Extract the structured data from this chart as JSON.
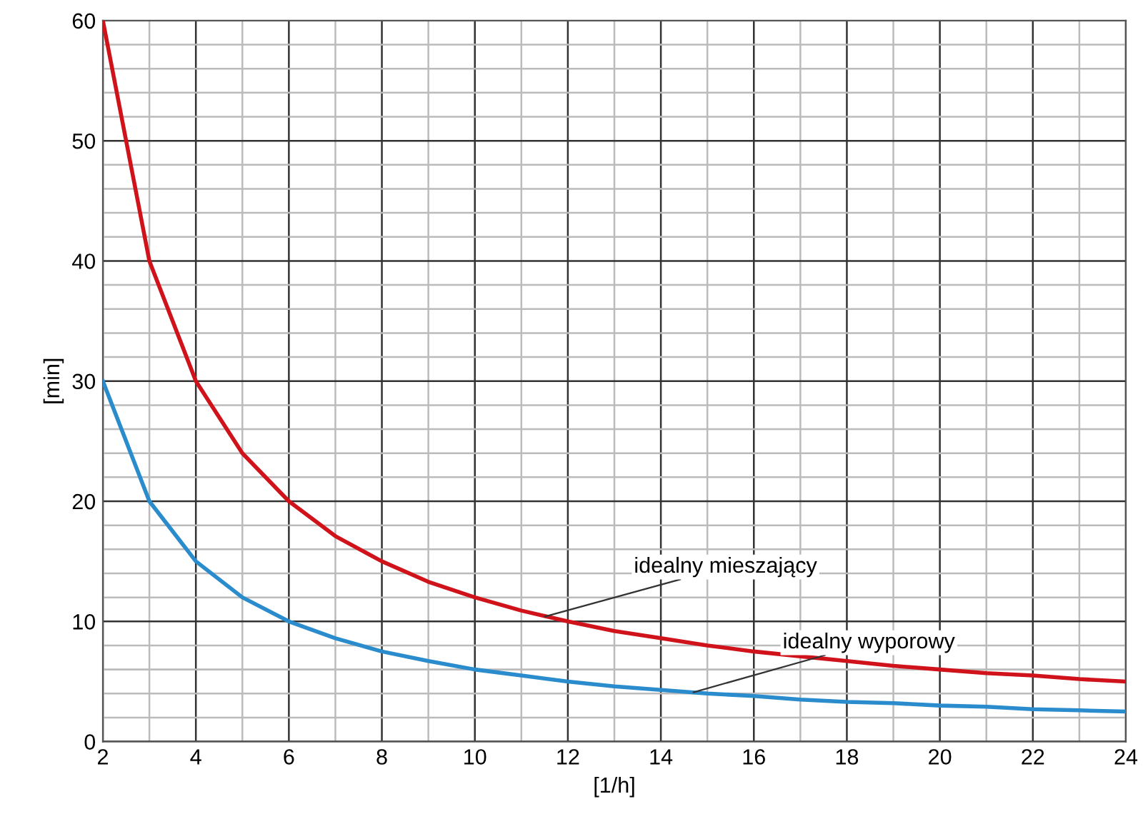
{
  "chart_data": {
    "type": "line",
    "xlabel": "[1/h]",
    "ylabel": "[min]",
    "x": [
      2,
      3,
      4,
      5,
      6,
      7,
      8,
      9,
      10,
      11,
      12,
      13,
      14,
      15,
      16,
      17,
      18,
      19,
      20,
      21,
      22,
      23,
      24
    ],
    "series": [
      {
        "color": "#d0121b",
        "values": [
          60,
          40,
          30,
          24,
          20,
          17.1,
          15,
          13.3,
          12,
          10.9,
          10,
          9.2,
          8.6,
          8,
          7.5,
          7.1,
          6.7,
          6.3,
          6,
          5.7,
          5.5,
          5.2,
          5
        ]
      },
      {
        "color": "#2a8ccc",
        "values": [
          30,
          20,
          15,
          12,
          10,
          8.6,
          7.5,
          6.7,
          6,
          5.5,
          5,
          4.6,
          4.3,
          4,
          3.8,
          3.5,
          3.3,
          3.2,
          3,
          2.9,
          2.7,
          2.6,
          2.5
        ]
      }
    ],
    "annotations": [
      {
        "text": "idealny mieszający",
        "x": 11.5,
        "y": 10.4
      },
      {
        "text": "idealny wyporowy",
        "x": 14.7,
        "y": 4.1
      }
    ],
    "xlim": [
      2,
      24
    ],
    "xticks": [
      2,
      4,
      6,
      8,
      10,
      12,
      14,
      16,
      18,
      20,
      22,
      24
    ],
    "ylim": [
      0,
      60
    ],
    "yticks": [
      0,
      10,
      20,
      30,
      40,
      50,
      60
    ],
    "grid": true,
    "line_style": "solid"
  }
}
